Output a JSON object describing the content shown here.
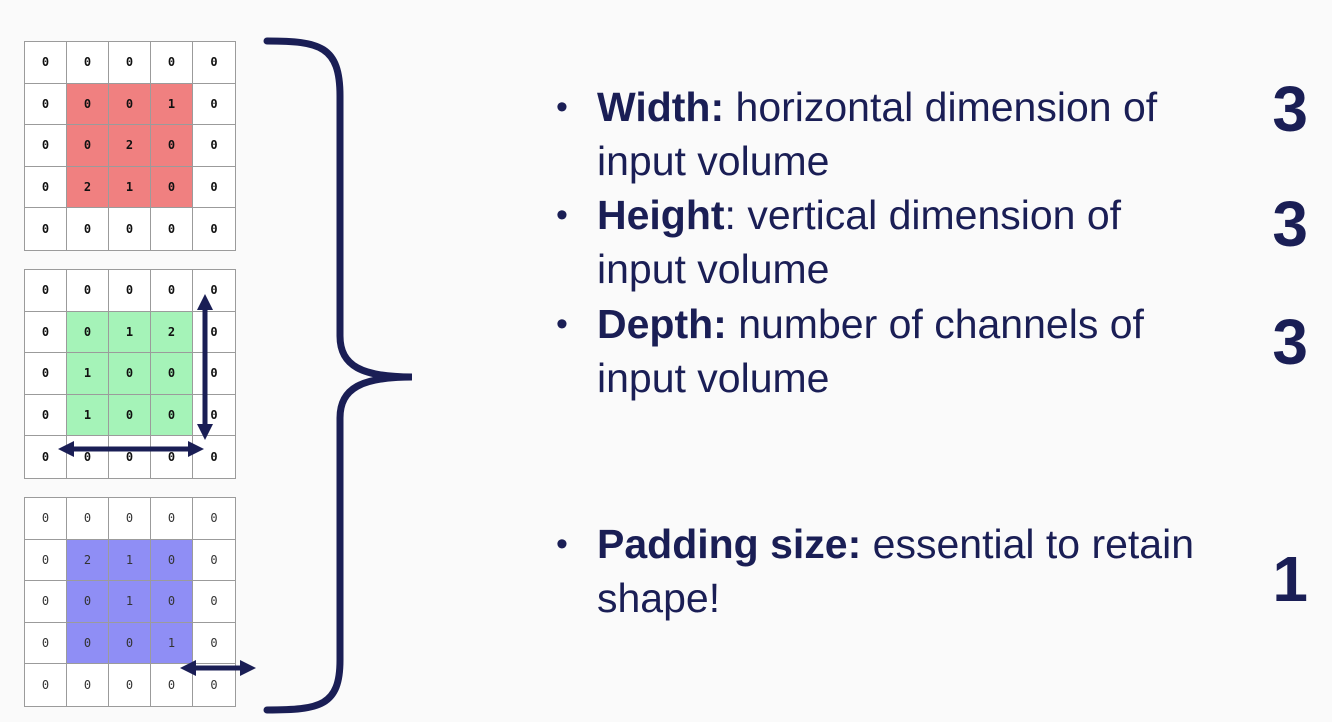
{
  "grids": {
    "red": {
      "cells": [
        "0",
        "0",
        "0",
        "0",
        "0",
        "0",
        "0",
        "0",
        "1",
        "0",
        "0",
        "0",
        "2",
        "0",
        "0",
        "0",
        "2",
        "1",
        "0",
        "0",
        "0",
        "0",
        "0",
        "0",
        "0"
      ],
      "highlight_color": "#f08080"
    },
    "green": {
      "cells": [
        "0",
        "0",
        "0",
        "0",
        "0",
        "0",
        "0",
        "1",
        "2",
        "0",
        "0",
        "1",
        "0",
        "0",
        "0",
        "0",
        "1",
        "0",
        "0",
        "0",
        "0",
        "0",
        "0",
        "0",
        "0"
      ],
      "highlight_color": "#a5f3b8"
    },
    "blue": {
      "cells": [
        "0",
        "0",
        "0",
        "0",
        "0",
        "0",
        "2",
        "1",
        "0",
        "0",
        "0",
        "0",
        "1",
        "0",
        "0",
        "0",
        "0",
        "0",
        "1",
        "0",
        "0",
        "0",
        "0",
        "0",
        "0"
      ],
      "highlight_color": "#8f8ef5"
    }
  },
  "bullets": [
    {
      "term": "Width:",
      "description": " horizontal dimension of input volume",
      "value": "3"
    },
    {
      "term": "Height",
      "description": ": vertical dimension of input volume",
      "value": "3"
    },
    {
      "term": "Depth:",
      "description": " number of channels of input volume",
      "value": "3"
    },
    {
      "term": "Padding size:",
      "description": " essential to retain shape!",
      "value": "1"
    }
  ],
  "bullet_symbol": "•",
  "colors": {
    "navy": "#1a1e55",
    "grid_line": "#9b9b9b"
  }
}
